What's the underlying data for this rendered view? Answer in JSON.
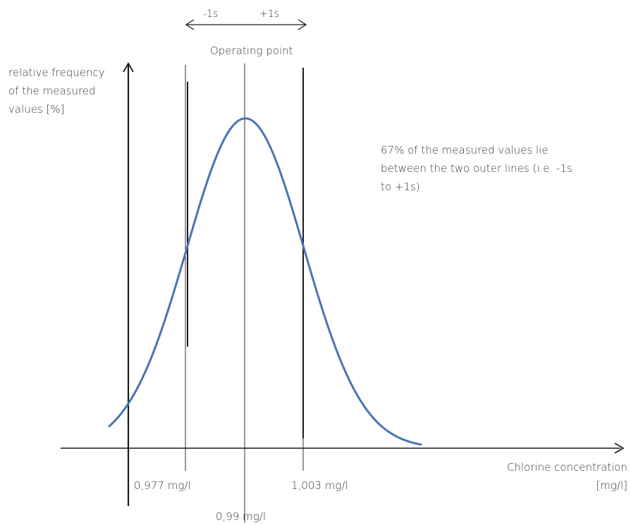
{
  "diagram": {
    "y_axis_label": [
      "relative frequency",
      "of the measured",
      "values [%]"
    ],
    "x_axis_label": [
      "Chlorine concentration",
      "[mg/l]"
    ],
    "operating_point_label": "Operating point",
    "minus_sigma_label": "-1s",
    "plus_sigma_label": "+1s",
    "annotation": [
      "67% of the measured values lie",
      "between the two outer lines (i.e. -1s",
      "to +1s)"
    ],
    "tick_left_label": "0,977 mg/l",
    "tick_center_label": "0,99 mg/l",
    "tick_right_label": "1,003 mg/l",
    "tick_left_value": 0.977,
    "tick_center_value": 0.99,
    "tick_right_value": 1.003,
    "colors": {
      "curve": "#4a73b5",
      "lines": "#1a1a1a",
      "text": "#3a3a3a"
    }
  }
}
